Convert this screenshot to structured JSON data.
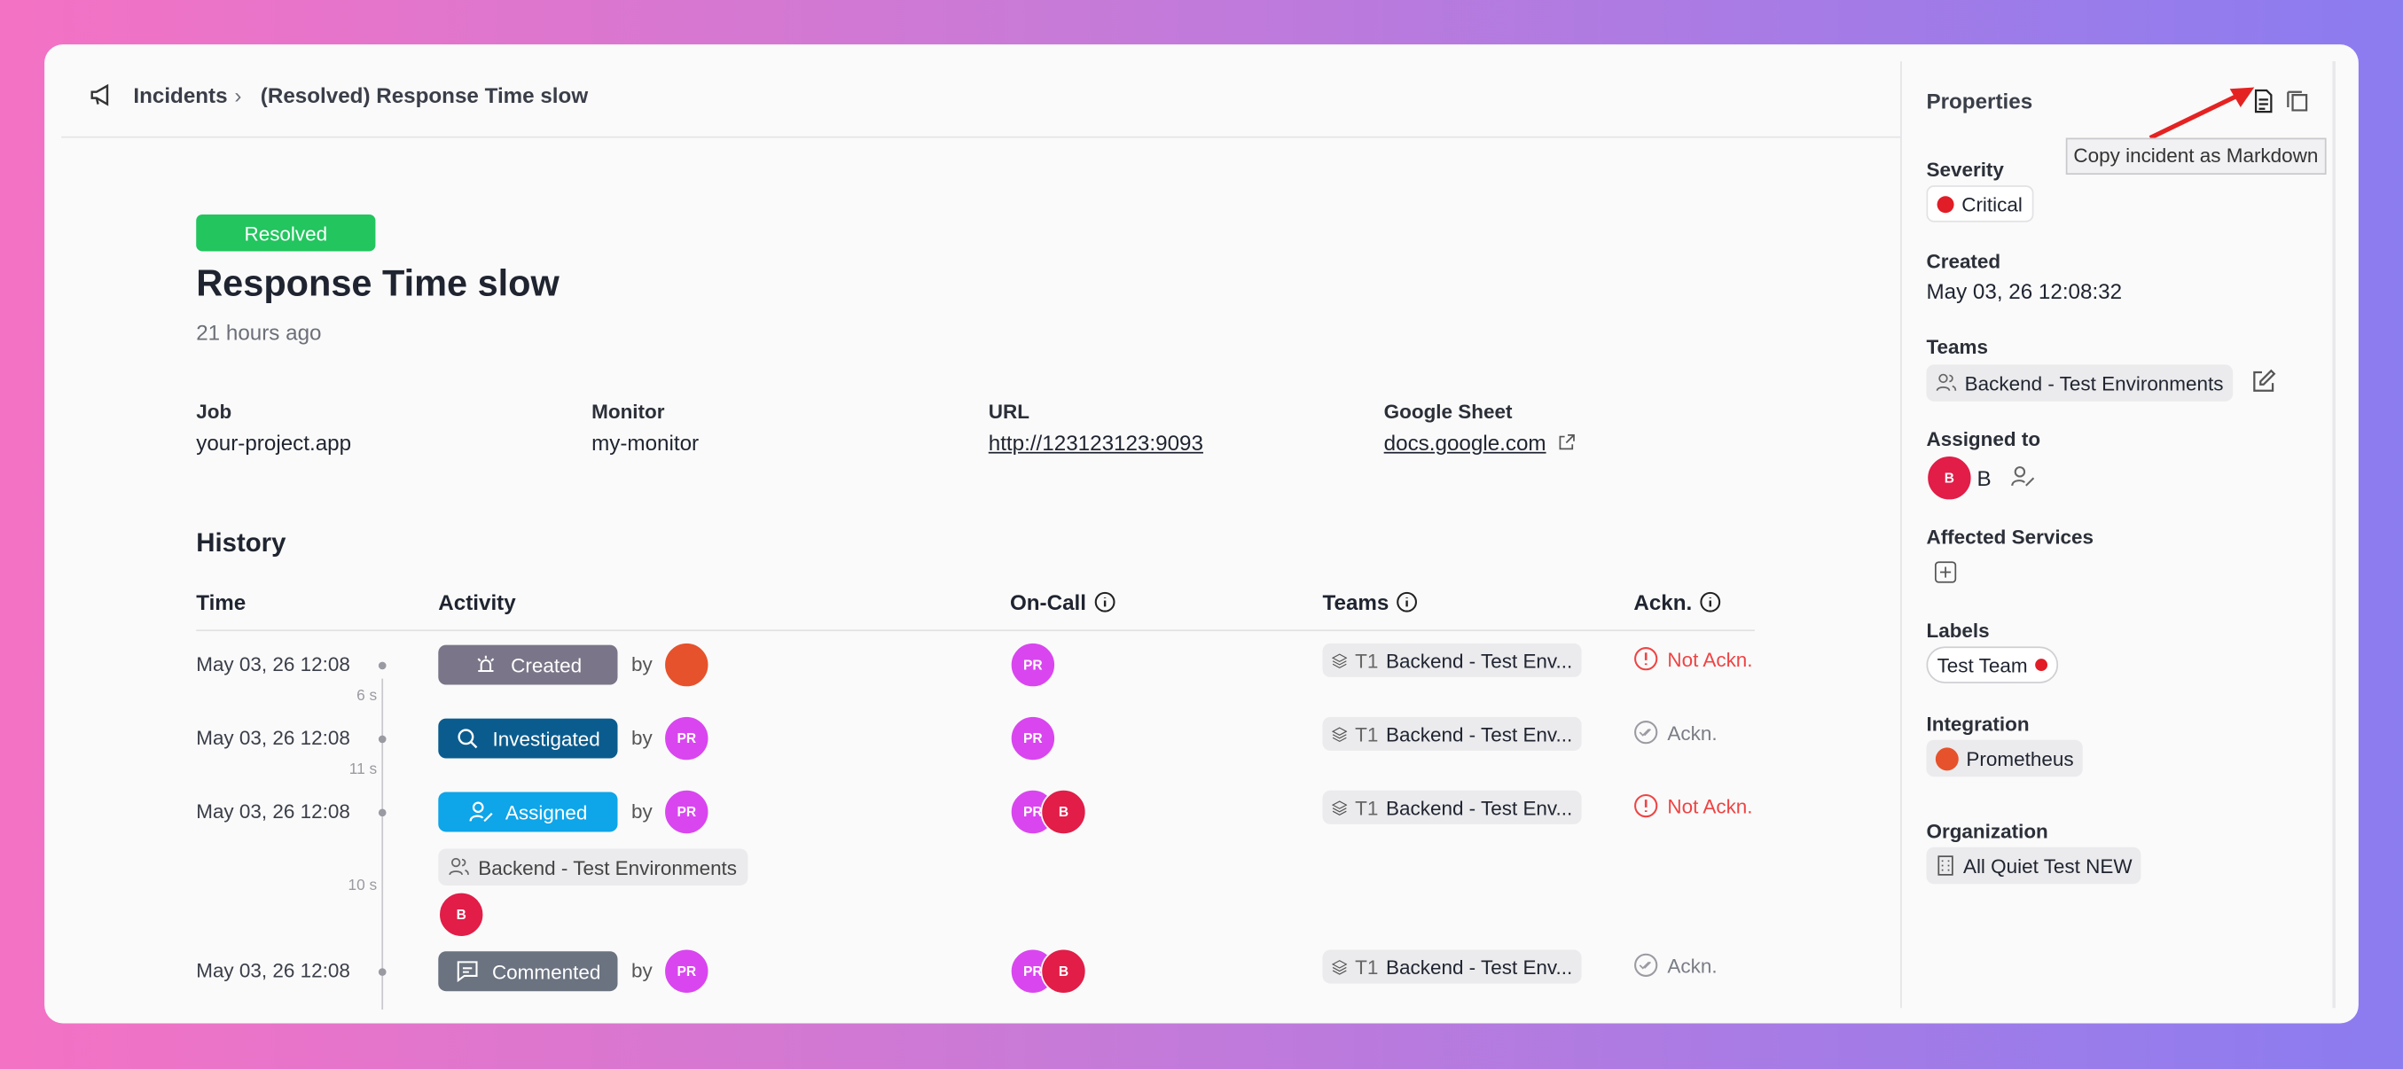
{
  "breadcrumb": {
    "root": "Incidents",
    "current": "(Resolved) Response Time slow"
  },
  "incident": {
    "status": "Resolved",
    "title": "Response Time slow",
    "age": "21 hours ago",
    "fields": [
      {
        "label": "Job",
        "value": "your-project.app"
      },
      {
        "label": "Monitor",
        "value": "my-monitor"
      },
      {
        "label": "URL",
        "value": "http://123123123:9093"
      },
      {
        "label": "Google Sheet",
        "value": "docs.google.com"
      }
    ]
  },
  "history": {
    "title": "History",
    "columns": [
      "Time",
      "Activity",
      "On-Call",
      "Teams",
      "Ackn."
    ],
    "rows": [
      {
        "time": "May 03, 26 12:08",
        "activity": "Created",
        "by": "by",
        "actor": null,
        "on_call": [
          "PR"
        ],
        "team_prefix": "T1",
        "team": "Backend - Test Env...",
        "ack": "Not Ackn."
      },
      {
        "time": "May 03, 26 12:08",
        "activity": "Investigated",
        "by": "by",
        "actor": "PR",
        "on_call": [
          "PR"
        ],
        "team_prefix": "T1",
        "team": "Backend - Test Env...",
        "ack": "Ackn."
      },
      {
        "time": "May 03, 26 12:08",
        "activity": "Assigned",
        "by": "by",
        "actor": "PR",
        "on_call": [
          "PR",
          "B"
        ],
        "team_prefix": "T1",
        "team": "Backend - Test Env...",
        "ack": "Not Ackn.",
        "assigned_team": "Backend - Test Environments",
        "assigned_user": "B"
      },
      {
        "time": "May 03, 26 12:08",
        "activity": "Commented",
        "by": "by",
        "actor": "PR",
        "on_call": [
          "PR",
          "B"
        ],
        "team_prefix": "T1",
        "team": "Backend - Test Env...",
        "ack": "Ackn."
      }
    ],
    "gaps": [
      "6 s",
      "11 s",
      "10 s"
    ]
  },
  "properties": {
    "title": "Properties",
    "tooltip": "Copy incident as Markdown",
    "severity": {
      "label": "Severity",
      "value": "Critical"
    },
    "created": {
      "label": "Created",
      "value": "May 03, 26 12:08:32"
    },
    "teams": {
      "label": "Teams",
      "value": "Backend - Test Environments"
    },
    "assigned": {
      "label": "Assigned to",
      "avatar": "B",
      "name": "B"
    },
    "affected_services": {
      "label": "Affected Services"
    },
    "labels": {
      "label": "Labels",
      "value": "Test Team"
    },
    "integration": {
      "label": "Integration",
      "value": "Prometheus"
    },
    "organization": {
      "label": "Organization",
      "value": "All Quiet Test NEW"
    }
  }
}
